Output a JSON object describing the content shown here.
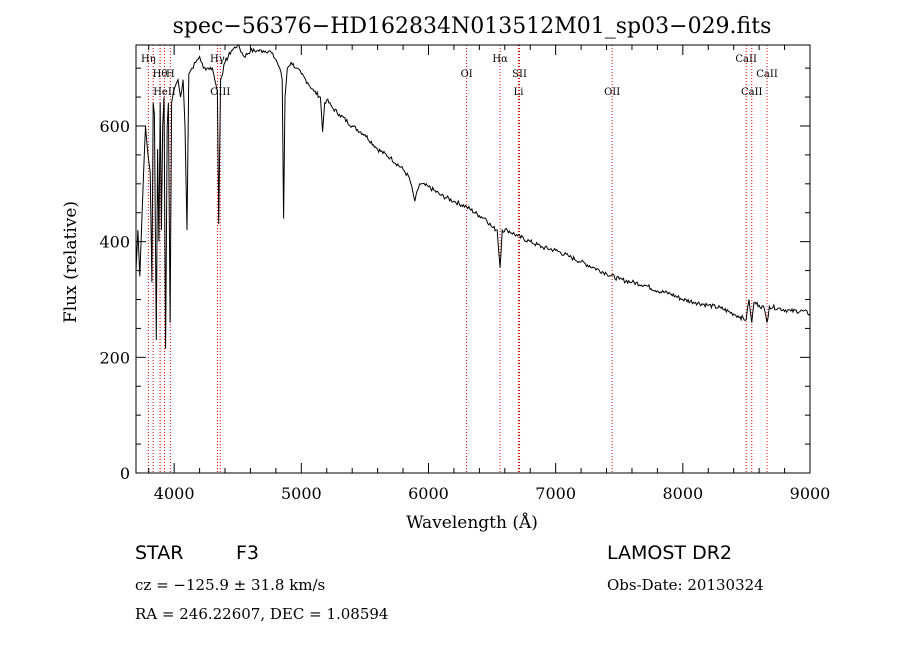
{
  "chart_data": {
    "type": "line",
    "title": "spec−56376−HD162834N013512M01_sp03−029.fits",
    "xlabel": "Wavelength (Å)",
    "ylabel": "Flux (relative)",
    "xlim": [
      3700,
      9000
    ],
    "ylim": [
      0,
      740
    ],
    "xticks": [
      {
        "value": 4000,
        "label": "4000"
      },
      {
        "value": 5000,
        "label": "5000"
      },
      {
        "value": 6000,
        "label": "6000"
      },
      {
        "value": 7000,
        "label": "7000"
      },
      {
        "value": 8000,
        "label": "8000"
      },
      {
        "value": 9000,
        "label": "9000"
      }
    ],
    "yticks": [
      {
        "value": 0,
        "label": "0"
      },
      {
        "value": 200,
        "label": "200"
      },
      {
        "value": 400,
        "label": "400"
      },
      {
        "value": 600,
        "label": "600"
      }
    ],
    "grid": false,
    "series": [
      {
        "x": [
          3700,
          3715,
          3730,
          3745,
          3760,
          3775,
          3790,
          3800,
          3812,
          3825,
          3835,
          3845,
          3860,
          3870,
          3880,
          3890,
          3900,
          3910,
          3920,
          3933,
          3945,
          3955,
          3968,
          3980,
          3995,
          4010,
          4030,
          4050,
          4070,
          4085,
          4101,
          4115,
          4140,
          4170,
          4200,
          4230,
          4260,
          4300,
          4320,
          4340,
          4350,
          4365,
          4400,
          4450,
          4500,
          4550,
          4600,
          4650,
          4700,
          4750,
          4800,
          4830,
          4850,
          4861,
          4872,
          4890,
          4920,
          4960,
          5000,
          5050,
          5100,
          5150,
          5167,
          5184,
          5200,
          5250,
          5300,
          5400,
          5500,
          5600,
          5700,
          5800,
          5850,
          5893,
          5930,
          6000,
          6100,
          6200,
          6300,
          6400,
          6450,
          6500,
          6540,
          6563,
          6580,
          6620,
          6700,
          6800,
          6900,
          7000,
          7100,
          7200,
          7300,
          7400,
          7500,
          7600,
          7700,
          7800,
          7900,
          8000,
          8100,
          8200,
          8300,
          8400,
          8450,
          8498,
          8520,
          8542,
          8560,
          8600,
          8640,
          8662,
          8680,
          8750,
          8850,
          8950,
          9000
        ],
        "y": [
          350,
          420,
          340,
          430,
          520,
          600,
          560,
          540,
          520,
          330,
          640,
          620,
          230,
          560,
          400,
          640,
          420,
          600,
          650,
          215,
          600,
          640,
          260,
          640,
          660,
          670,
          680,
          650,
          680,
          600,
          420,
          690,
          700,
          710,
          720,
          700,
          700,
          700,
          680,
          660,
          430,
          680,
          710,
          730,
          740,
          720,
          730,
          730,
          730,
          730,
          715,
          700,
          680,
          440,
          650,
          700,
          710,
          700,
          690,
          675,
          660,
          650,
          590,
          640,
          645,
          630,
          620,
          600,
          585,
          560,
          545,
          525,
          510,
          470,
          500,
          495,
          480,
          470,
          460,
          445,
          440,
          425,
          420,
          355,
          420,
          420,
          410,
          400,
          390,
          385,
          375,
          365,
          355,
          345,
          335,
          330,
          325,
          315,
          310,
          300,
          295,
          290,
          285,
          275,
          270,
          265,
          300,
          260,
          295,
          290,
          285,
          260,
          288,
          285,
          280,
          280,
          275
        ],
        "color": "#000000"
      }
    ],
    "reference_lines": [
      {
        "x": 3797,
        "label": "Hη",
        "label_row": 1
      },
      {
        "x": 3835,
        "label": "",
        "label_row": 0
      },
      {
        "x": 3889,
        "label": "Hθ",
        "label_row": 2
      },
      {
        "x": 3970,
        "label": "H",
        "label_row": 2
      },
      {
        "x": 3924,
        "label": "HeII",
        "label_row": 3
      },
      {
        "x": 4340,
        "label": "Hγ",
        "label_row": 1
      },
      {
        "x": 4363,
        "label": "OIII",
        "label_row": 3
      },
      {
        "x": 6300,
        "label": "OI",
        "label_row": 2
      },
      {
        "x": 6563,
        "label": "Hα",
        "label_row": 1
      },
      {
        "x": 6716,
        "label": "SII",
        "label_row": 2
      },
      {
        "x": 6708,
        "label": "Li",
        "label_row": 3
      },
      {
        "x": 7444,
        "label": "OII",
        "label_row": 3
      },
      {
        "x": 8498,
        "label": "CaII",
        "label_row": 1
      },
      {
        "x": 8542,
        "label": "CaII",
        "label_row": 3
      },
      {
        "x": 8662,
        "label": "CaII",
        "label_row": 2
      }
    ]
  },
  "info": {
    "class_label": "STAR",
    "subclass": "F3",
    "survey": "LAMOST DR2",
    "cz": "cz = −125.9 ± 31.8 km/s",
    "obs_date": "Obs-Date: 20130324",
    "radec": "RA = 246.22607, DEC =   1.08594"
  }
}
